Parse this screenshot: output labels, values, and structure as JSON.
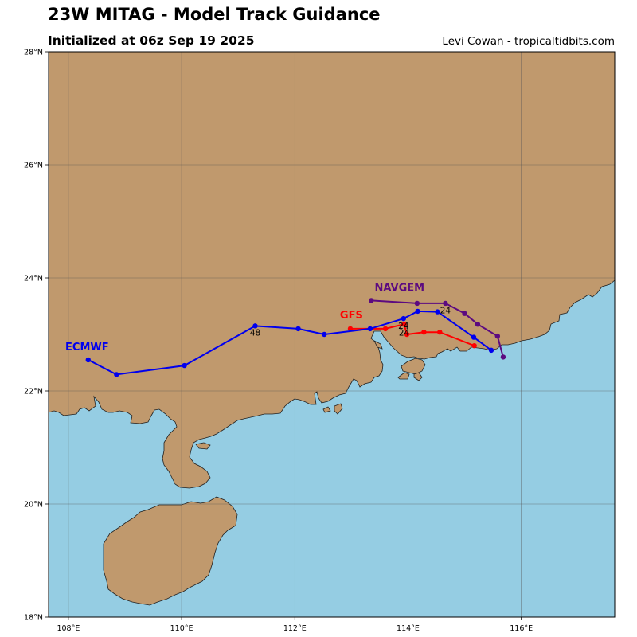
{
  "header": {
    "title": "23W MITAG - Model Track Guidance",
    "subtitle": "Initialized at 06z Sep 19 2025",
    "credit": "Levi Cowan - tropicaltidbits.com"
  },
  "colors": {
    "ocean": "#95cde3",
    "land": "#c0996d",
    "coast": "#222222",
    "grid": "#555555"
  },
  "map": {
    "lon_range": [
      107.65,
      117.65
    ],
    "lat_range": [
      18.0,
      28.0
    ],
    "lon_ticks": [
      {
        "value": 108,
        "label": "108°E"
      },
      {
        "value": 110,
        "label": "110°E"
      },
      {
        "value": 112,
        "label": "112°E"
      },
      {
        "value": 114,
        "label": "114°E"
      },
      {
        "value": 116,
        "label": "116°E"
      }
    ],
    "lat_ticks": [
      {
        "value": 18,
        "label": "18°N"
      },
      {
        "value": 20,
        "label": "20°N"
      },
      {
        "value": 22,
        "label": "22°N"
      },
      {
        "value": 24,
        "label": "24°N"
      },
      {
        "value": 26,
        "label": "26°N"
      },
      {
        "value": 28,
        "label": "28°N"
      }
    ],
    "gridlines": true
  },
  "tracks": [
    {
      "name": "NAVGEM",
      "color": "#5c0a80",
      "label_at": [
        113.85,
        23.77
      ],
      "points": [
        [
          115.68,
          22.6
        ],
        [
          115.58,
          22.97
        ],
        [
          115.23,
          23.18
        ],
        [
          115.0,
          23.37
        ],
        [
          114.66,
          23.55
        ],
        [
          114.16,
          23.55
        ],
        [
          113.35,
          23.6
        ]
      ],
      "hour_labels": [
        {
          "text": "24",
          "lon": 114.66,
          "lat": 23.37
        }
      ]
    },
    {
      "name": "GFS",
      "color": "#ff0000",
      "label_at": [
        113.0,
        23.28
      ],
      "points": [
        [
          115.17,
          22.8
        ],
        [
          114.56,
          23.04
        ],
        [
          114.28,
          23.04
        ],
        [
          113.98,
          23.0
        ],
        [
          113.93,
          23.18
        ],
        [
          113.6,
          23.1
        ],
        [
          112.98,
          23.1
        ]
      ],
      "hour_labels": [
        {
          "text": "24",
          "lon": 113.93,
          "lat": 22.98
        }
      ]
    },
    {
      "name": "ECMWF",
      "color": "#0000ee",
      "label_at": [
        108.33,
        22.72
      ],
      "points": [
        [
          115.47,
          22.72
        ],
        [
          115.16,
          22.95
        ],
        [
          114.52,
          23.4
        ],
        [
          114.17,
          23.41
        ],
        [
          113.92,
          23.28
        ],
        [
          113.33,
          23.1
        ],
        [
          112.52,
          23.0
        ],
        [
          112.06,
          23.1
        ],
        [
          111.3,
          23.15
        ],
        [
          110.05,
          22.45
        ],
        [
          108.85,
          22.29
        ],
        [
          108.35,
          22.55
        ]
      ],
      "hour_labels": [
        {
          "text": "24",
          "lon": 113.92,
          "lat": 23.1
        },
        {
          "text": "48",
          "lon": 111.3,
          "lat": 22.98
        }
      ]
    }
  ]
}
